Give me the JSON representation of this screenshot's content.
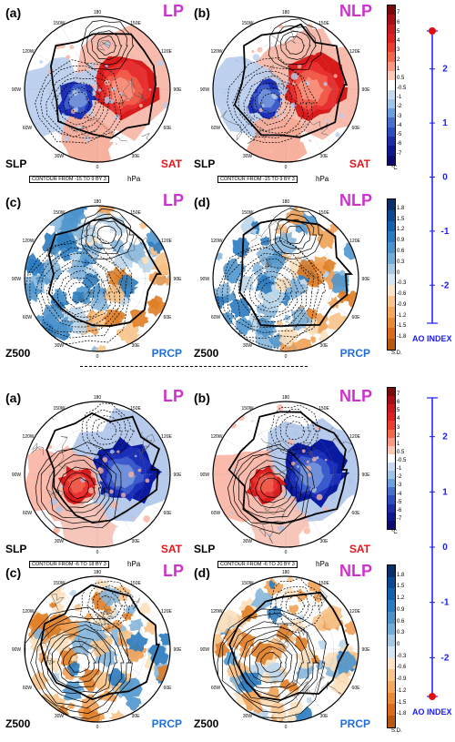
{
  "blocks": [
    {
      "rows": [
        {
          "panels": [
            {
              "letter": "(a)",
              "type": "LP",
              "left": "SLP",
              "right": "SAT",
              "style": "sat-warm"
            },
            {
              "letter": "(b)",
              "type": "NLP",
              "left": "SLP",
              "right": "SAT",
              "style": "sat-warm"
            }
          ],
          "contour_notes": [
            "CONTOUR FROM -15 TO 9 BY 3",
            "CONTOUR FROM -15 TO 9 BY 3"
          ],
          "unit": "hPa"
        },
        {
          "panels": [
            {
              "letter": "(c)",
              "type": "LP",
              "left": "Z500",
              "right": "PRCP",
              "style": "prcp-a"
            },
            {
              "letter": "(d)",
              "type": "NLP",
              "left": "Z500",
              "right": "PRCP",
              "style": "prcp-a"
            }
          ]
        }
      ]
    },
    {
      "rows": [
        {
          "panels": [
            {
              "letter": "(a)",
              "type": "LP",
              "left": "SLP",
              "right": "SAT",
              "style": "sat-cold"
            },
            {
              "letter": "(b)",
              "type": "NLP",
              "left": "SLP",
              "right": "SAT",
              "style": "sat-cold"
            }
          ],
          "contour_notes": [
            "CONTOUR FROM -6 TO 18 BY 3",
            "CONTOUR FROM -6 TO 20 BY 3"
          ],
          "unit": "hPa"
        },
        {
          "panels": [
            {
              "letter": "(c)",
              "type": "LP",
              "left": "Z500",
              "right": "PRCP",
              "style": "prcp-b"
            },
            {
              "letter": "(d)",
              "type": "NLP",
              "left": "Z500",
              "right": "PRCP",
              "style": "prcp-b"
            }
          ]
        }
      ]
    }
  ],
  "map_labels": {
    "top": "180",
    "bottom": "0",
    "upper_left": "150W",
    "upper_right": "150E",
    "left_upper": "120W",
    "right_upper": "120E",
    "left_mid": "90W",
    "right_mid": "90E",
    "left_lower": "60W",
    "right_lower": "60E",
    "lower_left": "30W",
    "lower_right": "30E"
  },
  "colorbars": {
    "sat": {
      "labels": [
        "7",
        "6",
        "5",
        "4",
        "3",
        "2",
        "1",
        "0.5",
        "-0.5",
        "-1",
        "-2",
        "-3",
        "-4",
        "-5",
        "-6",
        "-7"
      ],
      "unit": "°C",
      "colors": [
        "#7a0a0a",
        "#a50f15",
        "#cb181d",
        "#e02020",
        "#ef3b2c",
        "#f4684a",
        "#f99a80",
        "#fcc9b9",
        "#ffffff",
        "#c6d9ef",
        "#9ec4ea",
        "#6aa0dd",
        "#4472cc",
        "#2b4fbd",
        "#1d2da8",
        "#101890",
        "#0a0a70"
      ]
    },
    "prcp": {
      "labels": [
        "1.8",
        "1.5",
        "1.2",
        "0.9",
        "0.6",
        "0.3",
        "0",
        "-0.3",
        "-0.6",
        "-0.9",
        "-1.2",
        "-1.5",
        "-1.8"
      ],
      "unit": "S.D.",
      "colors": [
        "#08306b",
        "#0b4a93",
        "#1361ae",
        "#2a7bc1",
        "#4a93cd",
        "#70acd8",
        "#a5c9e4",
        "#d4e4f0",
        "#fbe3c4",
        "#f9c58c",
        "#f4a85e",
        "#ea8a36",
        "#d96d1b",
        "#b85810"
      ]
    },
    "ao_top": {
      "ticks": [
        "2",
        "1",
        "0",
        "-1",
        "-2"
      ],
      "label": "AO INDEX"
    },
    "ao_bottom": {
      "ticks": [
        "2",
        "1",
        "0",
        "-1",
        "-2"
      ],
      "label": "AO INDEX"
    }
  },
  "colors": {
    "lp": "#cc33cc",
    "sat_label": "#e8141b",
    "prcp_label": "#1f6fe0",
    "ao_blue": "#1a1aff",
    "ao_dot": "#e01010"
  }
}
